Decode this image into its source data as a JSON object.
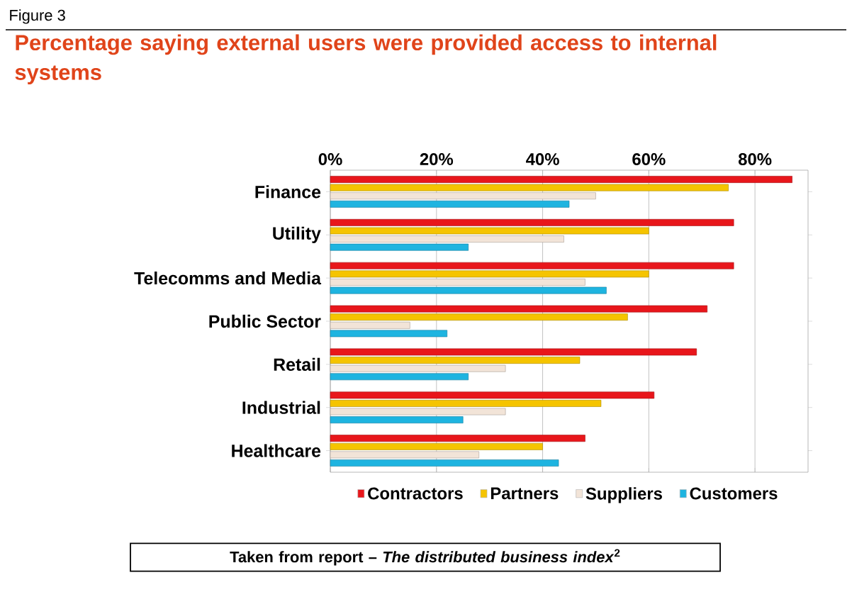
{
  "chart_data": {
    "type": "bar",
    "orientation": "horizontal",
    "title": "Percentage saying external users were provided access to internal systems",
    "categories": [
      "Finance",
      "Utility",
      "Telecomms and Media",
      "Public Sector",
      "Retail",
      "Industrial",
      "Healthcare"
    ],
    "series": [
      {
        "name": "Contractors",
        "color": "#e8161b",
        "values": [
          87,
          76,
          76,
          71,
          69,
          61,
          48
        ]
      },
      {
        "name": "Partners",
        "color": "#f5c400",
        "values": [
          75,
          60,
          60,
          56,
          47,
          51,
          40
        ]
      },
      {
        "name": "Suppliers",
        "color": "#f2e4d8",
        "values": [
          50,
          44,
          48,
          15,
          33,
          33,
          28
        ]
      },
      {
        "name": "Customers",
        "color": "#1eb4e0",
        "values": [
          45,
          26,
          52,
          22,
          26,
          25,
          43
        ]
      }
    ],
    "xlim": [
      0,
      90
    ],
    "xticks": [
      {
        "value": 0,
        "label": "0%"
      },
      {
        "value": 20,
        "label": "20%"
      },
      {
        "value": 40,
        "label": "40%"
      },
      {
        "value": 60,
        "label": "60%"
      },
      {
        "value": 80,
        "label": "80%"
      }
    ],
    "grid": "x",
    "legend": "bottom",
    "annotations": [
      "Figure 3",
      "Taken from report – *The distributed business index*$^{2}$"
    ]
  }
}
